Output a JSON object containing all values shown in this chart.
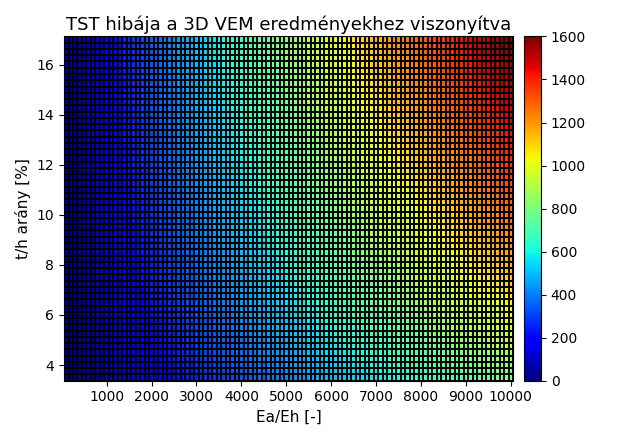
{
  "title": "TST hibája a 3D VEM eredményekhez viszonyítva",
  "xlabel": "Ea/Eh [-]",
  "ylabel": "t/h arány [%]",
  "x_min": 100,
  "x_max": 10000,
  "y_min": 3.5,
  "y_max": 17.0,
  "nx": 100,
  "ny": 55,
  "colorbar_ticks": [
    0,
    200,
    400,
    600,
    800,
    1000,
    1200,
    1400,
    1600
  ],
  "vmin": 0,
  "vmax": 1600,
  "xticks": [
    1000,
    2000,
    3000,
    4000,
    5000,
    6000,
    7000,
    8000,
    9000,
    10000
  ],
  "yticks": [
    4,
    6,
    8,
    10,
    12,
    14,
    16
  ],
  "colormap": "jet",
  "background_color": "#000000",
  "title_fontsize": 13,
  "label_fontsize": 11,
  "tick_fontsize": 10,
  "alpha_exp": 0.95,
  "beta_exp": 0.44
}
